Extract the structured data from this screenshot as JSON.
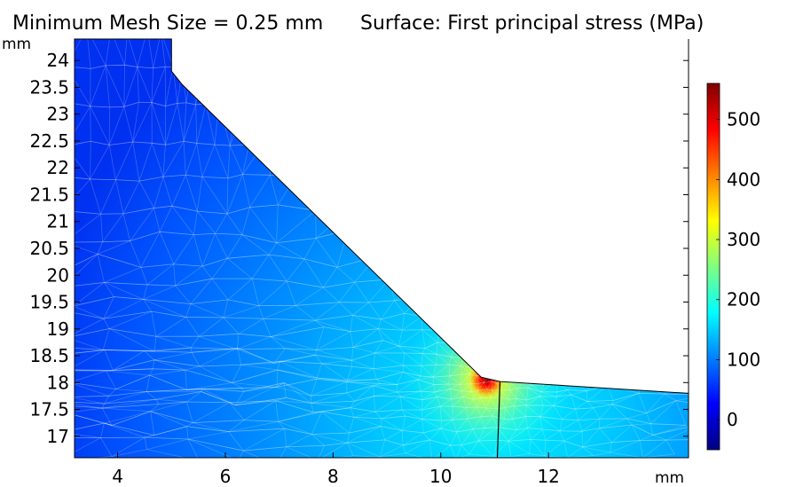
{
  "chart_data": {
    "type": "heatmap",
    "title": "Minimum Mesh Size = 0.25 mm Surface: First principal stress (MPa)",
    "title_left": "Minimum Mesh Size = 0.25 mm",
    "title_right": "Surface: First principal stress (MPa)",
    "xlabel": "mm",
    "ylabel": "mm",
    "xlim": [
      3.2,
      14.6
    ],
    "ylim": [
      16.6,
      24.4
    ],
    "x_ticks": [
      "4",
      "6",
      "8",
      "10",
      "12"
    ],
    "y_ticks": [
      "17",
      "17.5",
      "18",
      "18.5",
      "19",
      "19.5",
      "20",
      "20.5",
      "21",
      "21.5",
      "22",
      "22.5",
      "23",
      "23.5",
      "24"
    ],
    "x_tick_values": [
      4,
      6,
      8,
      10,
      12
    ],
    "y_tick_values": [
      17,
      17.5,
      18,
      18.5,
      19,
      19.5,
      20,
      20.5,
      21,
      21.5,
      22,
      22.5,
      23,
      23.5,
      24
    ],
    "boundary": [
      [
        3.2,
        24.4
      ],
      [
        5.0,
        24.4
      ],
      [
        5.0,
        23.8
      ],
      [
        5.2,
        23.55
      ],
      [
        10.75,
        18.1
      ],
      [
        11.1,
        18.02
      ],
      [
        14.6,
        17.8
      ],
      [
        14.6,
        16.6
      ],
      [
        3.2,
        16.6
      ]
    ],
    "internal_line": [
      [
        11.1,
        18.02
      ],
      [
        11.05,
        16.6
      ]
    ],
    "stress_concentration": {
      "x": 10.85,
      "y": 18.05,
      "peak": 560
    },
    "colorbar": {
      "min": -50,
      "max": 560,
      "ticks": [
        "0",
        "100",
        "200",
        "300",
        "400",
        "500"
      ],
      "tick_values": [
        0,
        100,
        200,
        300,
        400,
        500
      ],
      "colormap": "rainbow",
      "colors": [
        "#00007f",
        "#0000ff",
        "#0080ff",
        "#00ffff",
        "#80ff80",
        "#ffff00",
        "#ff8000",
        "#ff0000",
        "#7f0000"
      ]
    },
    "grid": false,
    "legend": "right"
  }
}
